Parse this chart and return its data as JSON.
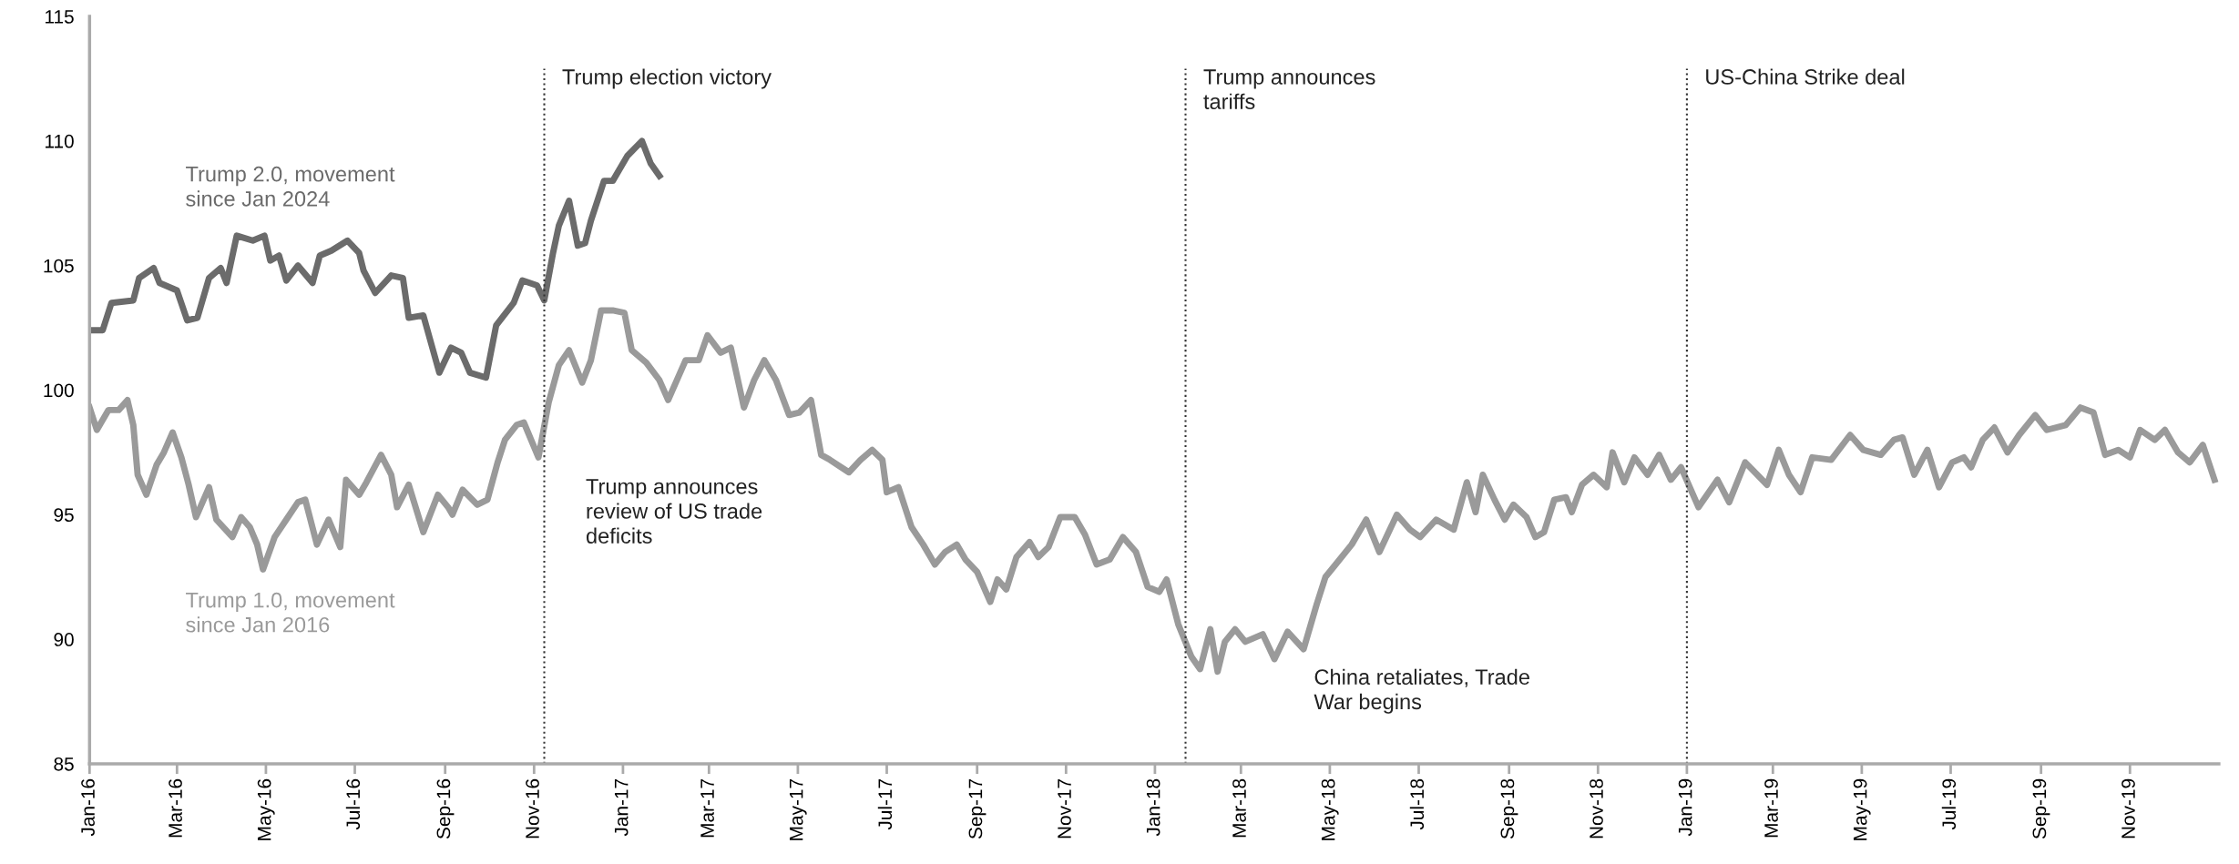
{
  "chart_data": {
    "type": "line",
    "xlim": [
      "2016-01-01",
      "2020-01-01"
    ],
    "ylim": [
      85,
      115
    ],
    "yticks": [
      85,
      90,
      95,
      100,
      105,
      110,
      115
    ],
    "xticks": [
      {
        "value": "2016-01-01",
        "label": "Jan-16"
      },
      {
        "value": "2016-03-01",
        "label": "Mar-16"
      },
      {
        "value": "2016-05-01",
        "label": "May-16"
      },
      {
        "value": "2016-07-01",
        "label": "Jul-16"
      },
      {
        "value": "2016-09-01",
        "label": "Sep-16"
      },
      {
        "value": "2016-11-01",
        "label": "Nov-16"
      },
      {
        "value": "2017-01-01",
        "label": "Jan-17"
      },
      {
        "value": "2017-03-01",
        "label": "Mar-17"
      },
      {
        "value": "2017-05-01",
        "label": "May-17"
      },
      {
        "value": "2017-07-01",
        "label": "Jul-17"
      },
      {
        "value": "2017-09-01",
        "label": "Sep-17"
      },
      {
        "value": "2017-11-01",
        "label": "Nov-17"
      },
      {
        "value": "2018-01-01",
        "label": "Jan-18"
      },
      {
        "value": "2018-03-01",
        "label": "Mar-18"
      },
      {
        "value": "2018-05-01",
        "label": "May-18"
      },
      {
        "value": "2018-07-01",
        "label": "Jul-18"
      },
      {
        "value": "2018-09-01",
        "label": "Sep-18"
      },
      {
        "value": "2018-11-01",
        "label": "Nov-18"
      },
      {
        "value": "2019-01-01",
        "label": "Jan-19"
      },
      {
        "value": "2019-03-01",
        "label": "Mar-19"
      },
      {
        "value": "2019-05-01",
        "label": "May-19"
      },
      {
        "value": "2019-07-01",
        "label": "Jul-19"
      },
      {
        "value": "2019-09-01",
        "label": "Sep-19"
      },
      {
        "value": "2019-11-01",
        "label": "Nov-19"
      }
    ],
    "grid": false,
    "legend": false,
    "line_style": "solid",
    "marker": "none",
    "series": [
      {
        "name": "Trump 2.0, movement\nsince Jan 2024",
        "color": "#6b6b6b",
        "x": [
          "2016-01-01",
          "2016-01-10",
          "2016-01-16",
          "2016-01-31",
          "2016-02-04",
          "2016-02-14",
          "2016-02-18",
          "2016-03-01",
          "2016-03-08",
          "2016-03-15",
          "2016-03-23",
          "2016-03-31",
          "2016-04-04",
          "2016-04-11",
          "2016-04-22",
          "2016-04-30",
          "2016-05-04",
          "2016-05-10",
          "2016-05-15",
          "2016-05-23",
          "2016-06-02",
          "2016-06-07",
          "2016-06-15",
          "2016-06-26",
          "2016-07-04",
          "2016-07-07",
          "2016-07-15",
          "2016-07-26",
          "2016-08-03",
          "2016-08-07",
          "2016-08-17",
          "2016-08-28",
          "2016-09-05",
          "2016-09-12",
          "2016-09-18",
          "2016-09-29",
          "2016-10-06",
          "2016-10-18",
          "2016-10-24",
          "2016-11-03",
          "2016-11-08",
          "2016-11-14",
          "2016-11-18",
          "2016-11-25",
          "2016-12-01",
          "2016-12-06",
          "2016-12-10",
          "2016-12-19",
          "2016-12-25",
          "2017-01-04",
          "2017-01-14",
          "2017-01-20",
          "2017-01-26"
        ],
        "values": [
          102.4,
          102.4,
          103.5,
          103.6,
          104.5,
          104.9,
          104.3,
          104.0,
          102.8,
          102.9,
          104.5,
          104.9,
          104.3,
          106.2,
          106.0,
          106.2,
          105.2,
          105.4,
          104.4,
          105.0,
          104.3,
          105.4,
          105.6,
          106.0,
          105.5,
          104.8,
          103.9,
          104.6,
          104.5,
          102.9,
          103.0,
          100.7,
          101.7,
          101.5,
          100.7,
          100.5,
          102.6,
          103.5,
          104.4,
          104.2,
          103.6,
          105.5,
          106.6,
          107.6,
          105.8,
          105.9,
          106.8,
          108.4,
          108.4,
          109.4,
          110.0,
          109.1,
          108.6
        ]
      },
      {
        "name": "Trump 1.0, movement\nsince Jan 2016",
        "color": "#9a9a9a",
        "x": [
          "2016-01-01",
          "2016-01-06",
          "2016-01-14",
          "2016-01-21",
          "2016-01-27",
          "2016-01-31",
          "2016-02-03",
          "2016-02-09",
          "2016-02-16",
          "2016-02-21",
          "2016-02-27",
          "2016-03-04",
          "2016-03-09",
          "2016-03-14",
          "2016-03-23",
          "2016-03-28",
          "2016-04-08",
          "2016-04-14",
          "2016-04-20",
          "2016-04-25",
          "2016-04-29",
          "2016-05-07",
          "2016-05-15",
          "2016-05-23",
          "2016-05-28",
          "2016-06-05",
          "2016-06-13",
          "2016-06-21",
          "2016-06-25",
          "2016-07-04",
          "2016-07-09",
          "2016-07-19",
          "2016-07-26",
          "2016-07-30",
          "2016-08-07",
          "2016-08-17",
          "2016-08-27",
          "2016-09-03",
          "2016-09-06",
          "2016-09-13",
          "2016-09-23",
          "2016-09-30",
          "2016-10-07",
          "2016-10-12",
          "2016-10-20",
          "2016-10-25",
          "2016-11-04",
          "2016-11-11",
          "2016-11-18",
          "2016-11-25",
          "2016-12-04",
          "2016-12-10",
          "2016-12-17",
          "2016-12-25",
          "2017-01-02",
          "2017-01-07",
          "2017-01-17",
          "2017-01-26",
          "2017-02-01",
          "2017-02-13",
          "2017-02-22",
          "2017-02-28",
          "2017-03-09",
          "2017-03-16",
          "2017-03-25",
          "2017-04-01",
          "2017-04-08",
          "2017-04-16",
          "2017-04-25",
          "2017-05-02",
          "2017-05-10",
          "2017-05-17",
          "2017-05-23",
          "2017-06-05",
          "2017-06-13",
          "2017-06-21",
          "2017-06-28",
          "2017-07-01",
          "2017-07-09",
          "2017-07-18",
          "2017-07-26",
          "2017-08-03",
          "2017-08-10",
          "2017-08-18",
          "2017-08-24",
          "2017-09-01",
          "2017-09-10",
          "2017-09-15",
          "2017-09-21",
          "2017-09-28",
          "2017-10-07",
          "2017-10-13",
          "2017-10-20",
          "2017-10-28",
          "2017-11-07",
          "2017-11-14",
          "2017-11-22",
          "2017-12-01",
          "2017-12-10",
          "2017-12-19",
          "2017-12-27",
          "2018-01-04",
          "2018-01-09",
          "2018-01-17",
          "2018-01-26",
          "2018-02-01",
          "2018-02-08",
          "2018-02-13",
          "2018-02-18",
          "2018-02-25",
          "2018-03-04",
          "2018-03-16",
          "2018-03-24",
          "2018-04-02",
          "2018-04-13",
          "2018-04-22",
          "2018-04-28",
          "2018-05-05",
          "2018-05-16",
          "2018-05-26",
          "2018-06-04",
          "2018-06-16",
          "2018-06-25",
          "2018-07-02",
          "2018-07-13",
          "2018-07-25",
          "2018-08-03",
          "2018-08-09",
          "2018-08-14",
          "2018-08-22",
          "2018-08-29",
          "2018-09-04",
          "2018-09-13",
          "2018-09-19",
          "2018-09-25",
          "2018-10-02",
          "2018-10-10",
          "2018-10-14",
          "2018-10-21",
          "2018-10-29",
          "2018-11-07",
          "2018-11-11",
          "2018-11-19",
          "2018-11-26",
          "2018-12-05",
          "2018-12-13",
          "2018-12-21",
          "2018-12-28",
          "2019-01-09",
          "2019-01-22",
          "2019-01-30",
          "2019-02-10",
          "2019-02-25",
          "2019-03-05",
          "2019-03-12",
          "2019-03-20",
          "2019-03-28",
          "2019-04-10",
          "2019-04-23",
          "2019-05-02",
          "2019-05-14",
          "2019-05-23",
          "2019-05-29",
          "2019-06-06",
          "2019-06-15",
          "2019-06-23",
          "2019-07-02",
          "2019-07-10",
          "2019-07-15",
          "2019-07-23",
          "2019-07-31",
          "2019-08-09",
          "2019-08-17",
          "2019-08-28",
          "2019-09-05",
          "2019-09-18",
          "2019-09-28",
          "2019-10-07",
          "2019-10-15",
          "2019-10-24",
          "2019-11-01",
          "2019-11-08",
          "2019-11-18",
          "2019-11-25",
          "2019-12-04",
          "2019-12-12",
          "2019-12-21",
          "2019-12-29"
        ],
        "values": [
          99.3,
          98.4,
          99.2,
          99.2,
          99.6,
          98.6,
          96.6,
          95.8,
          97.0,
          97.5,
          98.3,
          97.3,
          96.2,
          94.9,
          96.1,
          94.8,
          94.1,
          94.9,
          94.5,
          93.8,
          92.8,
          94.1,
          94.8,
          95.5,
          95.6,
          93.8,
          94.8,
          93.7,
          96.4,
          95.8,
          96.3,
          97.4,
          96.6,
          95.3,
          96.2,
          94.3,
          95.8,
          95.3,
          95.0,
          96.0,
          95.4,
          95.6,
          97.1,
          98.0,
          98.6,
          98.7,
          97.3,
          99.5,
          101.0,
          101.6,
          100.3,
          101.2,
          103.2,
          103.2,
          103.1,
          101.6,
          101.1,
          100.4,
          99.6,
          101.2,
          101.2,
          102.2,
          101.5,
          101.7,
          99.3,
          100.4,
          101.2,
          100.4,
          99.0,
          99.1,
          99.6,
          97.4,
          97.2,
          96.7,
          97.2,
          97.6,
          97.2,
          95.9,
          96.1,
          94.5,
          93.8,
          93.0,
          93.5,
          93.8,
          93.2,
          92.7,
          91.5,
          92.4,
          92.0,
          93.3,
          93.9,
          93.3,
          93.7,
          94.9,
          94.9,
          94.2,
          93.0,
          93.2,
          94.1,
          93.5,
          92.1,
          91.9,
          92.4,
          90.6,
          89.3,
          88.8,
          90.4,
          88.7,
          89.9,
          90.4,
          89.9,
          90.2,
          89.2,
          90.3,
          89.6,
          91.4,
          92.5,
          93.0,
          93.8,
          94.8,
          93.5,
          95.0,
          94.4,
          94.1,
          94.8,
          94.4,
          96.3,
          95.1,
          96.6,
          95.6,
          94.8,
          95.4,
          94.9,
          94.1,
          94.3,
          95.6,
          95.7,
          95.1,
          96.2,
          96.6,
          96.1,
          97.5,
          96.3,
          97.3,
          96.6,
          97.4,
          96.4,
          96.9,
          95.3,
          96.4,
          95.5,
          97.1,
          96.2,
          97.6,
          96.6,
          95.9,
          97.3,
          97.2,
          98.2,
          97.6,
          97.4,
          98.0,
          98.1,
          96.6,
          97.6,
          96.1,
          97.1,
          97.3,
          96.9,
          98.0,
          98.5,
          97.5,
          98.2,
          99.0,
          98.4,
          98.6,
          99.3,
          99.1,
          97.4,
          97.6,
          97.3,
          98.4,
          98.0,
          98.4,
          97.5,
          97.1,
          97.8,
          96.4
        ]
      }
    ],
    "ref_lines": [
      {
        "axis": "x",
        "value": "2016-11-08",
        "label": "Trump election victory",
        "color": "#333333",
        "line_style": "dotted"
      },
      {
        "axis": "x",
        "value": "2018-01-22",
        "label": "Trump announces\ntariffs",
        "color": "#333333",
        "line_style": "dotted"
      },
      {
        "axis": "x",
        "value": "2019-01-01",
        "label": "US-China Strike deal",
        "color": "#333333",
        "line_style": "dotted"
      }
    ],
    "annotations": [
      "Trump announces\nreview of US trade\ndeficits",
      "China retaliates, Trade\nWar begins"
    ]
  }
}
